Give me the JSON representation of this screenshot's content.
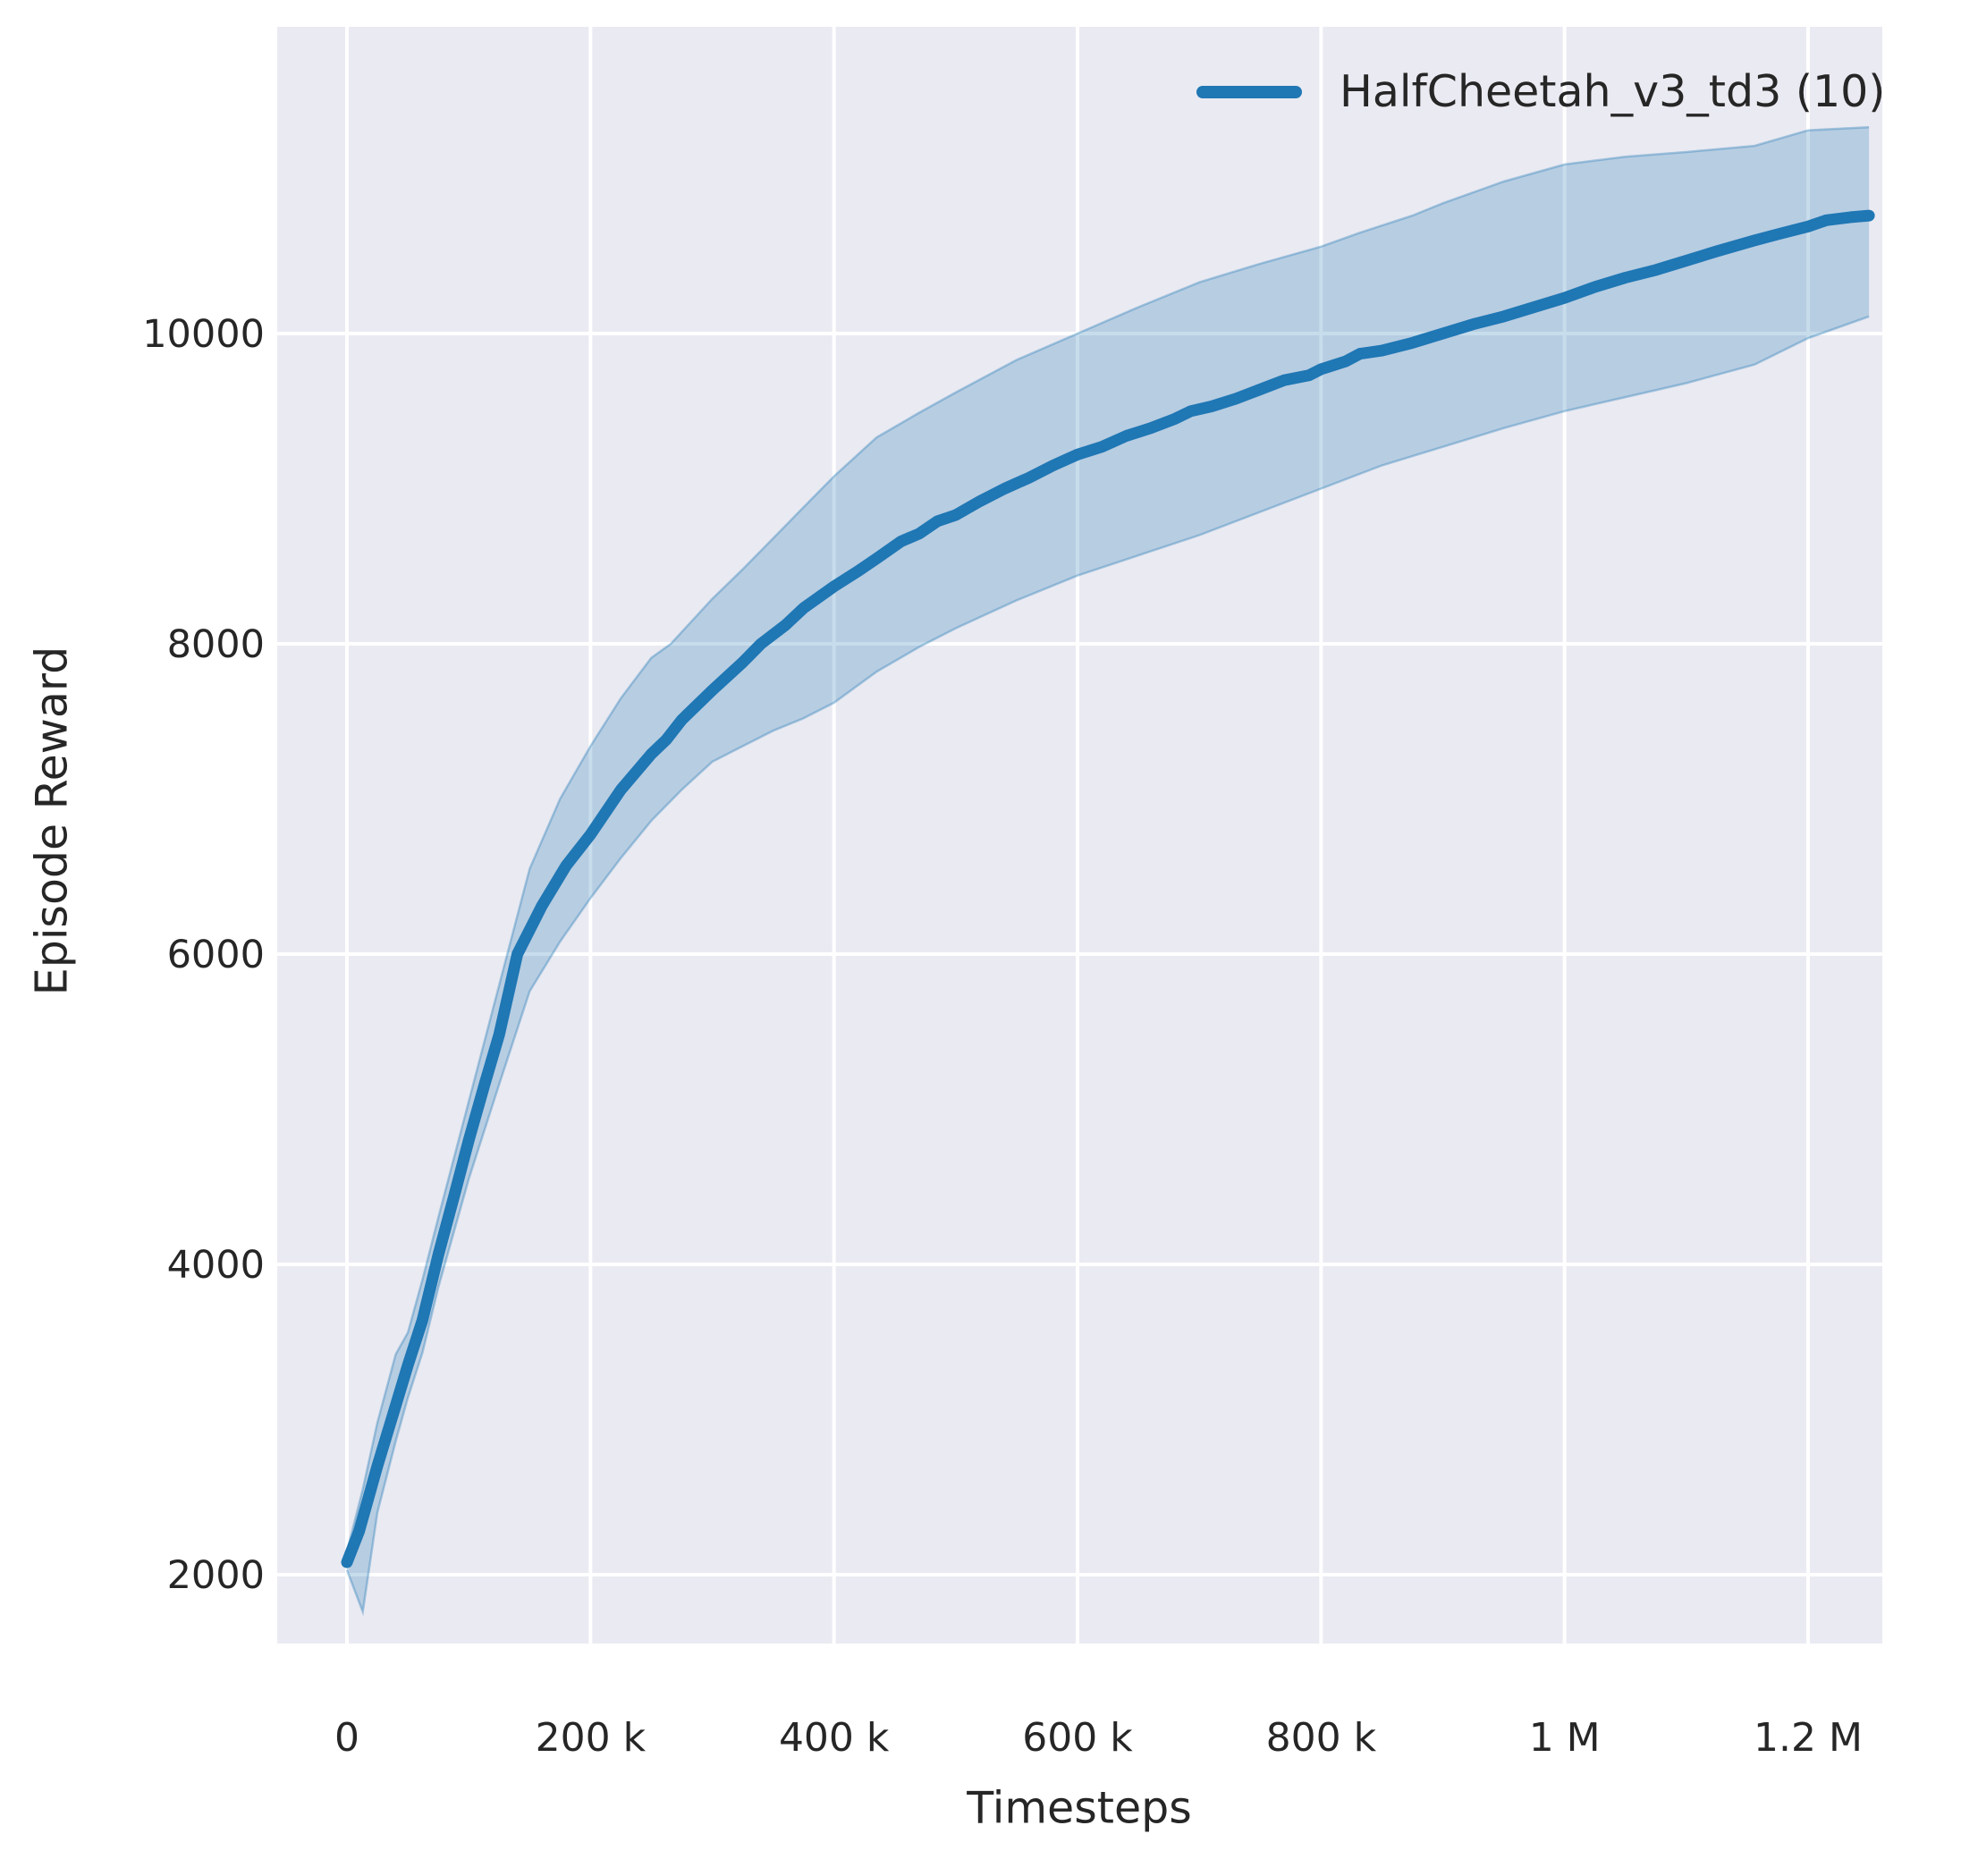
{
  "chart_data": {
    "type": "line",
    "title": "",
    "xlabel": "Timesteps",
    "ylabel": "Episode Reward",
    "grid": true,
    "axes_background": "#eaeaf2",
    "grid_color": "#ffffff",
    "text_color": "#262626",
    "xlim_thousands": [
      -57,
      1266
    ],
    "ylim": [
      1550,
      11980
    ],
    "x_ticks": [
      {
        "value_thousands": 0,
        "label": "0"
      },
      {
        "value_thousands": 200,
        "label": "200 k"
      },
      {
        "value_thousands": 400,
        "label": "400 k"
      },
      {
        "value_thousands": 600,
        "label": "600 k"
      },
      {
        "value_thousands": 800,
        "label": "800 k"
      },
      {
        "value_thousands": 1000,
        "label": "1 M"
      },
      {
        "value_thousands": 1200,
        "label": "1.2 M"
      }
    ],
    "y_ticks": [
      {
        "value": 2000,
        "label": "2000"
      },
      {
        "value": 4000,
        "label": "4000"
      },
      {
        "value": 6000,
        "label": "6000"
      },
      {
        "value": 8000,
        "label": "8000"
      },
      {
        "value": 10000,
        "label": "10000"
      }
    ],
    "legend": {
      "position": "upper right",
      "frame": false,
      "entries": [
        {
          "label": "HalfCheetah_v3_td3 (10)",
          "color": "#1f77b4"
        }
      ]
    },
    "series": [
      {
        "name": "HalfCheetah_v3_td3 (10)",
        "color": "#1f77b4",
        "band_fill_opacity": 0.25,
        "band_edge_opacity": 0.35,
        "mean_t_thousands_value": [
          [
            0,
            2080
          ],
          [
            10,
            2280
          ],
          [
            25,
            2700
          ],
          [
            40,
            3090
          ],
          [
            50,
            3350
          ],
          [
            62,
            3640
          ],
          [
            75,
            4060
          ],
          [
            88,
            4440
          ],
          [
            100,
            4800
          ],
          [
            113,
            5160
          ],
          [
            125,
            5480
          ],
          [
            140,
            6000
          ],
          [
            160,
            6310
          ],
          [
            180,
            6570
          ],
          [
            200,
            6770
          ],
          [
            225,
            7060
          ],
          [
            250,
            7290
          ],
          [
            262,
            7380
          ],
          [
            275,
            7510
          ],
          [
            300,
            7700
          ],
          [
            325,
            7880
          ],
          [
            340,
            8000
          ],
          [
            360,
            8120
          ],
          [
            375,
            8230
          ],
          [
            400,
            8370
          ],
          [
            420,
            8470
          ],
          [
            435,
            8550
          ],
          [
            455,
            8660
          ],
          [
            470,
            8710
          ],
          [
            485,
            8790
          ],
          [
            500,
            8830
          ],
          [
            520,
            8920
          ],
          [
            540,
            9000
          ],
          [
            560,
            9070
          ],
          [
            580,
            9150
          ],
          [
            600,
            9220
          ],
          [
            620,
            9270
          ],
          [
            640,
            9340
          ],
          [
            660,
            9390
          ],
          [
            680,
            9450
          ],
          [
            693,
            9500
          ],
          [
            710,
            9530
          ],
          [
            730,
            9580
          ],
          [
            750,
            9640
          ],
          [
            770,
            9700
          ],
          [
            790,
            9730
          ],
          [
            800,
            9770
          ],
          [
            820,
            9820
          ],
          [
            832,
            9870
          ],
          [
            850,
            9890
          ],
          [
            875,
            9940
          ],
          [
            900,
            10000
          ],
          [
            925,
            10060
          ],
          [
            950,
            10110
          ],
          [
            975,
            10170
          ],
          [
            1000,
            10230
          ],
          [
            1025,
            10300
          ],
          [
            1050,
            10360
          ],
          [
            1075,
            10410
          ],
          [
            1100,
            10470
          ],
          [
            1125,
            10530
          ],
          [
            1156,
            10600
          ],
          [
            1175,
            10640
          ],
          [
            1200,
            10690
          ],
          [
            1215,
            10730
          ],
          [
            1235,
            10750
          ],
          [
            1250,
            10760
          ]
        ],
        "lower_t_thousands_value": [
          [
            0,
            2030
          ],
          [
            13,
            1760
          ],
          [
            25,
            2400
          ],
          [
            40,
            2860
          ],
          [
            50,
            3140
          ],
          [
            62,
            3430
          ],
          [
            75,
            3850
          ],
          [
            100,
            4550
          ],
          [
            125,
            5160
          ],
          [
            150,
            5760
          ],
          [
            175,
            6080
          ],
          [
            200,
            6360
          ],
          [
            225,
            6620
          ],
          [
            250,
            6860
          ],
          [
            275,
            7060
          ],
          [
            300,
            7240
          ],
          [
            325,
            7340
          ],
          [
            350,
            7440
          ],
          [
            375,
            7520
          ],
          [
            400,
            7620
          ],
          [
            435,
            7820
          ],
          [
            470,
            7980
          ],
          [
            500,
            8100
          ],
          [
            550,
            8280
          ],
          [
            600,
            8440
          ],
          [
            650,
            8570
          ],
          [
            700,
            8700
          ],
          [
            750,
            8850
          ],
          [
            800,
            9000
          ],
          [
            850,
            9150
          ],
          [
            900,
            9270
          ],
          [
            950,
            9390
          ],
          [
            1000,
            9500
          ],
          [
            1050,
            9590
          ],
          [
            1100,
            9680
          ],
          [
            1156,
            9800
          ],
          [
            1200,
            9970
          ],
          [
            1250,
            10110
          ]
        ],
        "upper_t_thousands_value": [
          [
            0,
            2150
          ],
          [
            13,
            2550
          ],
          [
            25,
            2980
          ],
          [
            40,
            3420
          ],
          [
            50,
            3560
          ],
          [
            62,
            3900
          ],
          [
            75,
            4300
          ],
          [
            100,
            5050
          ],
          [
            125,
            5800
          ],
          [
            150,
            6550
          ],
          [
            175,
            7000
          ],
          [
            200,
            7340
          ],
          [
            225,
            7650
          ],
          [
            250,
            7910
          ],
          [
            266,
            8000
          ],
          [
            300,
            8290
          ],
          [
            325,
            8480
          ],
          [
            350,
            8680
          ],
          [
            375,
            8880
          ],
          [
            400,
            9080
          ],
          [
            435,
            9330
          ],
          [
            470,
            9490
          ],
          [
            500,
            9620
          ],
          [
            550,
            9830
          ],
          [
            600,
            10000
          ],
          [
            650,
            10170
          ],
          [
            700,
            10330
          ],
          [
            750,
            10450
          ],
          [
            800,
            10560
          ],
          [
            832,
            10650
          ],
          [
            875,
            10760
          ],
          [
            900,
            10840
          ],
          [
            950,
            10980
          ],
          [
            1000,
            11090
          ],
          [
            1050,
            11140
          ],
          [
            1100,
            11170
          ],
          [
            1156,
            11210
          ],
          [
            1200,
            11310
          ],
          [
            1250,
            11330
          ]
        ]
      }
    ]
  }
}
